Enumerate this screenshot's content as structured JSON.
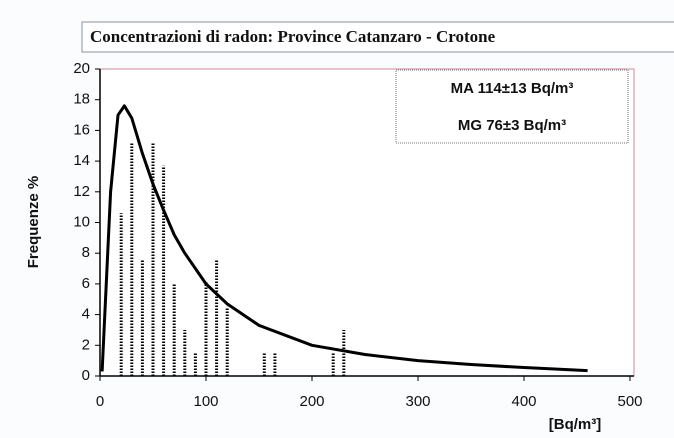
{
  "chart_data": {
    "type": "bar",
    "title": "Concentrazioni  di radon: Province Catanzaro - Crotone",
    "annotations": [
      "MA 114±13 Bq/m³",
      "MG 76±3 Bq/m³"
    ],
    "y_label": "Frequenze %",
    "x_label": "[Bq/m³]",
    "x": [
      20,
      30,
      40,
      50,
      60,
      70,
      80,
      90,
      100,
      110,
      120,
      155,
      165,
      220,
      230
    ],
    "values": [
      10.6,
      15.2,
      7.6,
      15.2,
      13.7,
      6.0,
      3.0,
      1.5,
      6.1,
      7.6,
      4.5,
      1.5,
      1.5,
      1.5,
      3.0
    ],
    "color": "#000000",
    "curve": {
      "x": [
        2,
        10,
        17,
        23,
        30,
        40,
        50,
        60,
        70,
        80,
        100,
        120,
        150,
        200,
        250,
        300,
        350,
        400,
        460
      ],
      "values": [
        0.3,
        12,
        17,
        17.6,
        16.8,
        14.5,
        12.5,
        10.8,
        9.2,
        8,
        6,
        4.7,
        3.3,
        2,
        1.4,
        1,
        0.75,
        0.55,
        0.35
      ],
      "color": "#000000"
    },
    "xlim": [
      0,
      500
    ],
    "xticks": [
      0,
      100,
      200,
      300,
      400,
      500
    ],
    "ylim": [
      0,
      20
    ],
    "yticks": [
      0,
      2,
      4,
      6,
      8,
      10,
      12,
      14,
      16,
      18,
      20
    ]
  }
}
